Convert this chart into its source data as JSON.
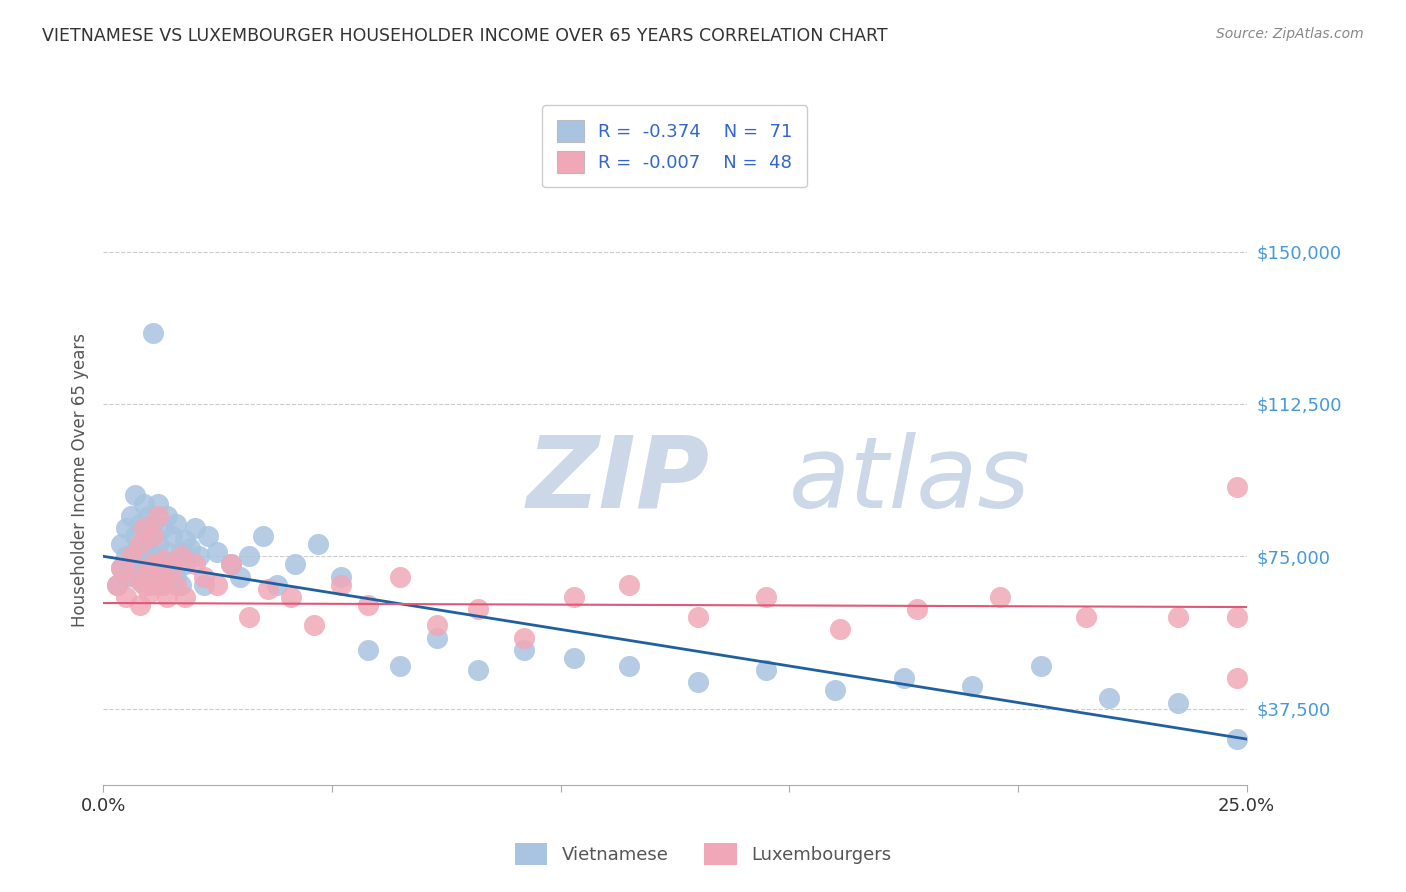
{
  "title": "VIETNAMESE VS LUXEMBOURGER HOUSEHOLDER INCOME OVER 65 YEARS CORRELATION CHART",
  "source": "Source: ZipAtlas.com",
  "ylabel": "Householder Income Over 65 years",
  "xlim": [
    0.0,
    0.25
  ],
  "ylim": [
    18750,
    168750
  ],
  "yticks": [
    37500,
    75000,
    112500,
    150000
  ],
  "ytick_labels": [
    "$37,500",
    "$75,000",
    "$112,500",
    "$150,000"
  ],
  "xticks": [
    0.0,
    0.05,
    0.1,
    0.15,
    0.2,
    0.25
  ],
  "xtick_labels": [
    "0.0%",
    "",
    "",
    "",
    "",
    "25.0%"
  ],
  "legend_r1": "-0.374",
  "legend_n1": "71",
  "legend_r2": "-0.007",
  "legend_n2": "48",
  "blue_color": "#a8c4e0",
  "pink_color": "#f0a8b8",
  "blue_line_color": "#2060a0",
  "pink_line_color": "#e05878",
  "watermark_zip": "ZIP",
  "watermark_atlas": "atlas",
  "watermark_color": "#ccd8e8",
  "viet_x": [
    0.003,
    0.004,
    0.004,
    0.005,
    0.005,
    0.005,
    0.006,
    0.006,
    0.007,
    0.007,
    0.007,
    0.008,
    0.008,
    0.008,
    0.008,
    0.009,
    0.009,
    0.009,
    0.01,
    0.01,
    0.01,
    0.011,
    0.011,
    0.011,
    0.011,
    0.012,
    0.012,
    0.012,
    0.013,
    0.013,
    0.013,
    0.014,
    0.014,
    0.015,
    0.015,
    0.016,
    0.016,
    0.017,
    0.017,
    0.018,
    0.018,
    0.019,
    0.02,
    0.021,
    0.022,
    0.023,
    0.025,
    0.028,
    0.03,
    0.032,
    0.035,
    0.038,
    0.042,
    0.047,
    0.052,
    0.058,
    0.065,
    0.073,
    0.082,
    0.092,
    0.103,
    0.115,
    0.13,
    0.145,
    0.16,
    0.175,
    0.19,
    0.205,
    0.22,
    0.235,
    0.248
  ],
  "viet_y": [
    68000,
    72000,
    78000,
    75000,
    82000,
    70000,
    85000,
    73000,
    80000,
    76000,
    90000,
    69000,
    83000,
    75000,
    71000,
    88000,
    77000,
    73000,
    85000,
    79000,
    68000,
    130000,
    75000,
    83000,
    70000,
    88000,
    72000,
    78000,
    82000,
    73000,
    68000,
    85000,
    76000,
    80000,
    72000,
    83000,
    70000,
    76000,
    68000,
    79000,
    73000,
    77000,
    82000,
    75000,
    68000,
    80000,
    76000,
    73000,
    70000,
    75000,
    80000,
    68000,
    73000,
    78000,
    70000,
    52000,
    48000,
    55000,
    47000,
    52000,
    50000,
    48000,
    44000,
    47000,
    42000,
    45000,
    43000,
    48000,
    40000,
    39000,
    30000
  ],
  "lux_x": [
    0.003,
    0.004,
    0.005,
    0.006,
    0.007,
    0.008,
    0.008,
    0.009,
    0.009,
    0.01,
    0.01,
    0.011,
    0.011,
    0.012,
    0.012,
    0.013,
    0.013,
    0.014,
    0.015,
    0.016,
    0.017,
    0.018,
    0.02,
    0.022,
    0.025,
    0.028,
    0.032,
    0.036,
    0.041,
    0.046,
    0.052,
    0.058,
    0.065,
    0.073,
    0.082,
    0.092,
    0.103,
    0.115,
    0.13,
    0.145,
    0.161,
    0.178,
    0.196,
    0.215,
    0.235,
    0.248,
    0.248,
    0.248
  ],
  "lux_y": [
    68000,
    72000,
    65000,
    75000,
    70000,
    78000,
    63000,
    82000,
    68000,
    72000,
    66000,
    80000,
    73000,
    68000,
    85000,
    70000,
    74000,
    65000,
    72000,
    68000,
    75000,
    65000,
    73000,
    70000,
    68000,
    73000,
    60000,
    67000,
    65000,
    58000,
    68000,
    63000,
    70000,
    58000,
    62000,
    55000,
    65000,
    68000,
    60000,
    65000,
    57000,
    62000,
    65000,
    60000,
    60000,
    45000,
    92000,
    60000
  ]
}
